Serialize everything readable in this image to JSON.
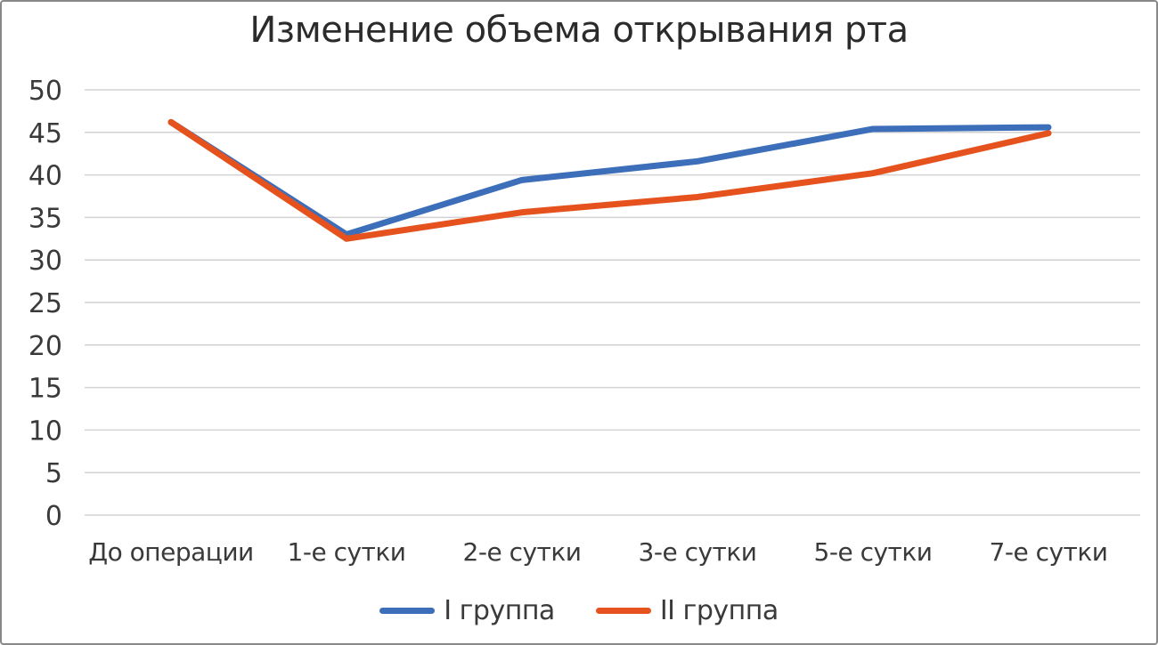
{
  "chart_data": {
    "type": "line",
    "title": "Изменение объема открывания рта",
    "categories": [
      "До операции",
      "1-е сутки",
      "2-е сутки",
      "3-е сутки",
      "5-е сутки",
      "7-е сутки"
    ],
    "series": [
      {
        "name": "I группа",
        "color": "#3C6EBA",
        "values": [
          46.2,
          33.0,
          39.4,
          41.6,
          45.4,
          45.6
        ]
      },
      {
        "name": "II группа",
        "color": "#E5521D",
        "values": [
          46.2,
          32.5,
          35.6,
          37.4,
          40.2,
          44.9
        ]
      }
    ],
    "xlabel": "",
    "ylabel": "",
    "ylim": [
      0,
      50
    ],
    "ytick_step": 5,
    "grid": true,
    "legend_position": "bottom",
    "title_color": "#2b2b2b",
    "text_color": "#3a3a3a",
    "grid_color": "#d2d2d2"
  }
}
